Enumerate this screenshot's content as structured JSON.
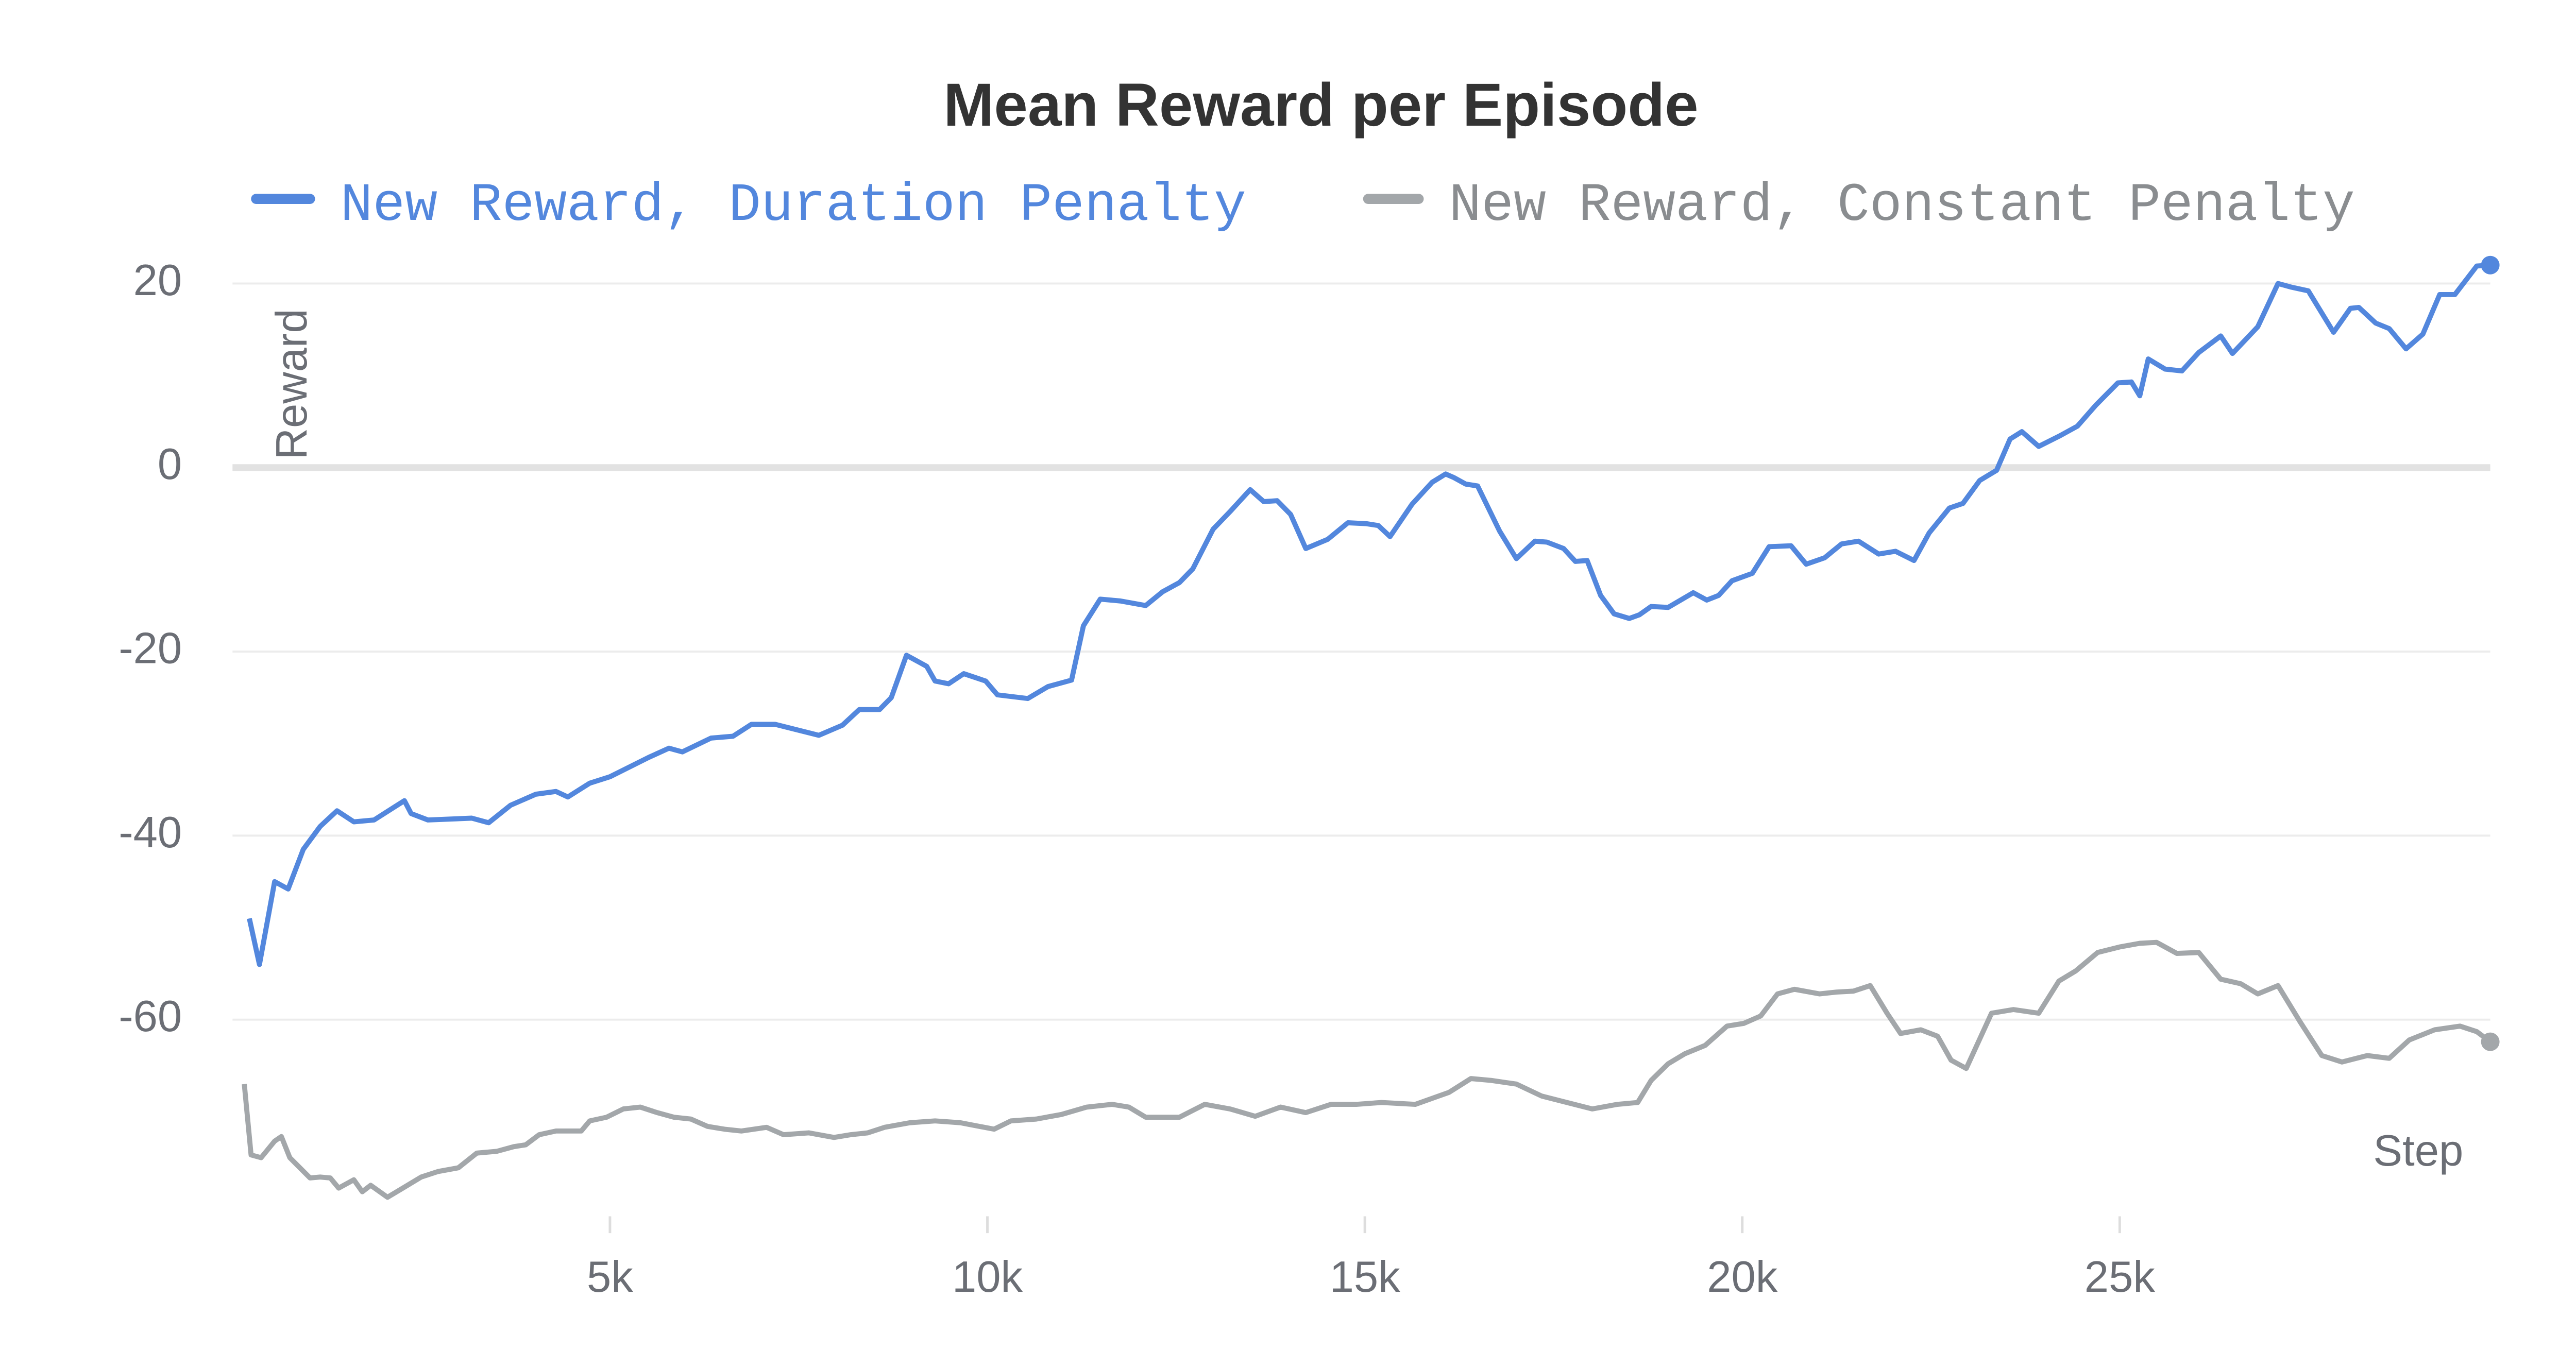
{
  "chart_data": {
    "type": "line",
    "title": "Mean Reward per Episode",
    "xlabel": "Step",
    "ylabel": "Reward",
    "xlim": [
      0,
      29909
    ],
    "ylim": [
      -81,
      27
    ],
    "xticks": [
      {
        "value": 5000,
        "label": "5k"
      },
      {
        "value": 10000,
        "label": "10k"
      },
      {
        "value": 15000,
        "label": "15k"
      },
      {
        "value": 20000,
        "label": "20k"
      },
      {
        "value": 25000,
        "label": "25k"
      }
    ],
    "yticks": [
      -60,
      -40,
      -20,
      0,
      20
    ],
    "grid": true,
    "series": [
      {
        "name": "New Reward, Duration Penalty",
        "color": "#5387dd",
        "x": [
          223,
          357,
          558,
          737,
          937,
          1161,
          1384,
          1607,
          1875,
          2277,
          2366,
          2589,
          3169,
          3393,
          3683,
          4018,
          4285,
          4442,
          4732,
          5000,
          5513,
          5781,
          5959,
          6339,
          6629,
          6875,
          7187,
          7767,
          8080,
          8303,
          8571,
          8727,
          8928,
          9196,
          9307,
          9486,
          9687,
          9977,
          10133,
          10535,
          10803,
          11115,
          11272,
          11495,
          11763,
          12097,
          12321,
          12544,
          12722,
          12990,
          13213,
          13481,
          13660,
          13838,
          14017,
          14218,
          14508,
          14776,
          15021,
          15178,
          15334,
          15624,
          15892,
          16070,
          16182,
          16338,
          16494,
          16785,
          17008,
          17253,
          17410,
          17633,
          17789,
          17945,
          18124,
          18302,
          18503,
          18637,
          18793,
          19017,
          19351,
          19530,
          19686,
          19865,
          20133,
          20356,
          20646,
          20847,
          21092,
          21316,
          21539,
          21807,
          22030,
          22275,
          22476,
          22744,
          22923,
          23146,
          23369,
          23548,
          23704,
          23927,
          24195,
          24440,
          24686,
          24976,
          25155,
          25266,
          25378,
          25601,
          25824,
          26047,
          26338,
          26494,
          26829,
          27097,
          27275,
          27498,
          27833,
          28056,
          28168,
          28391,
          28570,
          28793,
          29016,
          29239,
          29440,
          29730,
          29909
        ],
        "values": [
          -49,
          -54,
          -45,
          -45.8,
          -41.5,
          -39,
          -37.3,
          -38.5,
          -38.3,
          -36.2,
          -37.6,
          -38.3,
          -38.1,
          -38.6,
          -36.7,
          -35.5,
          -35.2,
          -35.8,
          -34.3,
          -33.6,
          -31.5,
          -30.5,
          -30.9,
          -29.4,
          -29.2,
          -27.9,
          -27.9,
          -29.1,
          -28,
          -26.3,
          -26.3,
          -25,
          -20.4,
          -21.6,
          -23.2,
          -23.5,
          -22.4,
          -23.2,
          -24.7,
          -25.1,
          -23.8,
          -23.1,
          -17.2,
          -14.3,
          -14.5,
          -15,
          -13.5,
          -12.5,
          -11,
          -6.7,
          -4.8,
          -2.4,
          -3.7,
          -3.6,
          -5.1,
          -8.8,
          -7.8,
          -6,
          -6.1,
          -6.3,
          -7.5,
          -4,
          -1.6,
          -0.7,
          -1.1,
          -1.8,
          -2,
          -6.9,
          -9.9,
          -8,
          -8.1,
          -8.8,
          -10.2,
          -10.1,
          -13.9,
          -15.9,
          -16.4,
          -16,
          -15.1,
          -15.2,
          -13.6,
          -14.4,
          -13.9,
          -12.3,
          -11.5,
          -8.6,
          -8.5,
          -10.5,
          -9.8,
          -8.3,
          -8,
          -9.4,
          -9.1,
          -10.1,
          -7.1,
          -4.4,
          -3.9,
          -1.4,
          -0.3,
          3.1,
          3.9,
          2.3,
          3.4,
          4.5,
          6.8,
          9.2,
          9.3,
          7.8,
          11.8,
          10.7,
          10.5,
          12.5,
          14.3,
          12.4,
          15.3,
          20,
          19.6,
          19.2,
          14.7,
          17.3,
          17.4,
          15.7,
          15.1,
          12.9,
          14.5,
          18.8,
          18.8,
          21.9,
          22
        ]
      },
      {
        "name": "New Reward, Constant Penalty",
        "color": "#a3a7aa",
        "x": [
          156,
          246,
          379,
          558,
          647,
          759,
          893,
          1027,
          1161,
          1295,
          1406,
          1607,
          1719,
          1830,
          2053,
          2277,
          2500,
          2723,
          2991,
          3236,
          3504,
          3727,
          3884,
          4062,
          4285,
          4620,
          4732,
          4955,
          5178,
          5401,
          5625,
          5848,
          6071,
          6294,
          6517,
          6741,
          7075,
          7299,
          7633,
          7968,
          8191,
          8415,
          8638,
          8973,
          9307,
          9642,
          10089,
          10312,
          10647,
          10981,
          11316,
          11651,
          11874,
          12097,
          12544,
          12879,
          13213,
          13548,
          13883,
          14218,
          14553,
          14887,
          15222,
          15669,
          16115,
          16405,
          16673,
          17008,
          17343,
          17677,
          18012,
          18347,
          18615,
          18793,
          19017,
          19240,
          19508,
          19798,
          20021,
          20244,
          20467,
          20691,
          21025,
          21249,
          21472,
          21695,
          21918,
          22097,
          22365,
          22588,
          22766,
          22967,
          23302,
          23592,
          23927,
          24195,
          24418,
          24708,
          24998,
          25266,
          25489,
          25757,
          26047,
          26338,
          26605,
          26829,
          27097,
          27387,
          27677,
          27945,
          28280,
          28570,
          28837,
          29172,
          29507,
          29730,
          29909
        ],
        "values": [
          -67,
          -74.7,
          -75,
          -73.2,
          -72.7,
          -75,
          -76.1,
          -77.2,
          -77.1,
          -77.2,
          -78.3,
          -77.4,
          -78.7,
          -78,
          -79.3,
          -78.2,
          -77.1,
          -76.5,
          -76.1,
          -74.5,
          -74.3,
          -73.8,
          -73.6,
          -72.5,
          -72.1,
          -72.1,
          -71,
          -70.6,
          -69.7,
          -69.5,
          -70.1,
          -70.6,
          -70.8,
          -71.6,
          -71.9,
          -72.1,
          -71.7,
          -72.5,
          -72.3,
          -72.8,
          -72.5,
          -72.3,
          -71.7,
          -71.2,
          -71,
          -71.2,
          -71.9,
          -71,
          -70.8,
          -70.3,
          -69.5,
          -69.2,
          -69.5,
          -70.6,
          -70.6,
          -69.2,
          -69.7,
          -70.5,
          -69.5,
          -70.1,
          -69.2,
          -69.2,
          -69,
          -69.2,
          -67.9,
          -66.4,
          -66.6,
          -67,
          -68.3,
          -69,
          -69.7,
          -69.2,
          -69,
          -66.6,
          -64.8,
          -63.7,
          -62.8,
          -60.7,
          -60.4,
          -59.6,
          -57.2,
          -56.7,
          -57.2,
          -57,
          -56.9,
          -56.3,
          -59.3,
          -61.5,
          -61.1,
          -61.8,
          -64.4,
          -65.3,
          -59.3,
          -58.9,
          -59.3,
          -55.8,
          -54.7,
          -52.7,
          -52.1,
          -51.7,
          -51.6,
          -52.8,
          -52.7,
          -55.6,
          -56.1,
          -57.2,
          -56.3,
          -60.2,
          -63.9,
          -64.6,
          -63.9,
          -64.2,
          -62.2,
          -61.1,
          -60.7,
          -61.3,
          -62.4
        ]
      }
    ]
  }
}
